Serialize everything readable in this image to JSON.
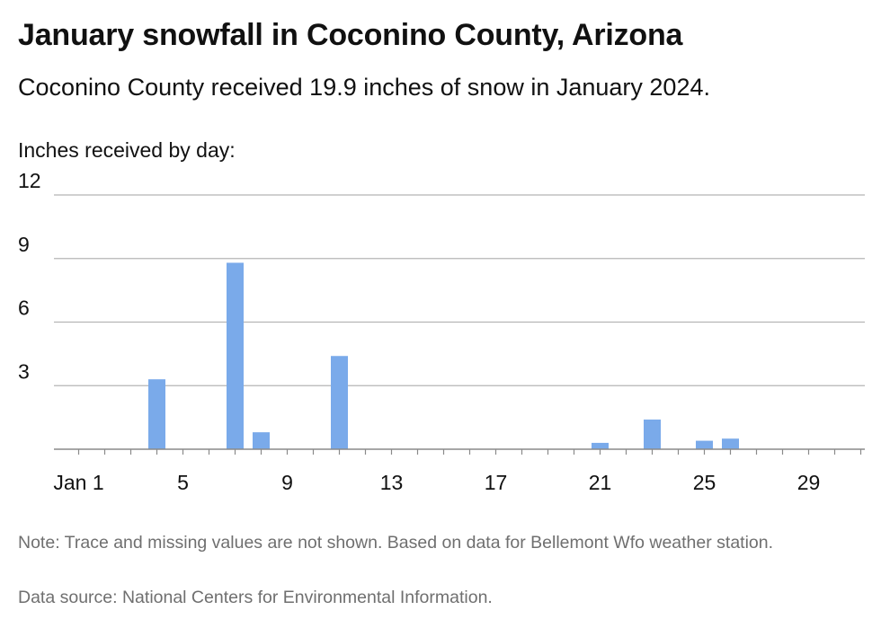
{
  "header": {
    "title": "January snowfall in Coconino County, Arizona",
    "subtitle": "Coconino County received 19.9 inches of snow in January 2024."
  },
  "chart_data": {
    "type": "bar",
    "title": "January snowfall in Coconino County, Arizona",
    "subtitle": "Coconino County received 19.9 inches of snow in January 2024.",
    "ylabel": "Inches received by day:",
    "xlabel": "",
    "ylim": [
      0,
      12
    ],
    "y_ticks": [
      3,
      6,
      9,
      12
    ],
    "x_tick_days": [
      1,
      5,
      9,
      13,
      17,
      21,
      25,
      29
    ],
    "x_tick_labels": [
      "Jan 1",
      "5",
      "9",
      "13",
      "17",
      "21",
      "25",
      "29"
    ],
    "x_range_days": [
      1,
      31
    ],
    "grid": true,
    "legend": "none",
    "bar_color": "#7aaaea",
    "series": [
      {
        "days": [
          4,
          7,
          8,
          11,
          21,
          23,
          25,
          26
        ],
        "values": [
          3.3,
          8.8,
          0.8,
          4.4,
          0.3,
          1.4,
          0.4,
          0.5
        ]
      }
    ]
  },
  "footer": {
    "note": "Note: Trace and missing values are not shown. Based on data for Bellemont Wfo weather station.",
    "source": "Data source: National Centers for Environmental Information."
  }
}
